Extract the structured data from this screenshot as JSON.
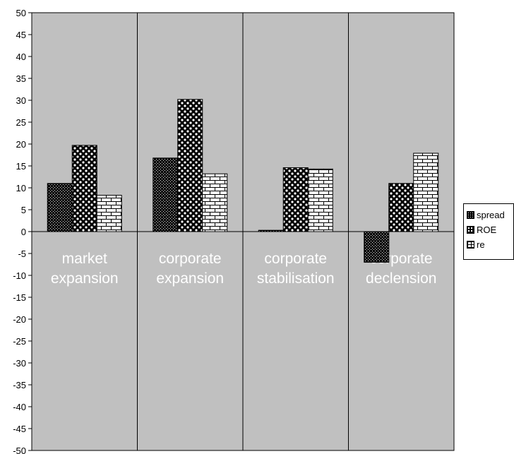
{
  "chart_data": {
    "type": "bar",
    "categories": [
      [
        "market",
        "expansion"
      ],
      [
        "corporate",
        "expansion"
      ],
      [
        "corporate",
        "stabilisation"
      ],
      [
        "corporate",
        "declension"
      ]
    ],
    "series": [
      {
        "name": "spread",
        "values": [
          11,
          16.8,
          0.3,
          -7
        ]
      },
      {
        "name": "ROE",
        "values": [
          19.7,
          30.2,
          14.6,
          11
        ]
      },
      {
        "name": "re",
        "values": [
          8.3,
          13.2,
          14.3,
          17.9
        ]
      }
    ],
    "ylim": [
      -50,
      50
    ],
    "ytick_step": 5,
    "grid": "vertical category separators",
    "legend_position": "right",
    "colors": {
      "plot_background": "#c0c0c0",
      "spread": "#000000",
      "ROE": "#000000",
      "re": "#ffffff",
      "category_label": "#ffffff"
    }
  }
}
